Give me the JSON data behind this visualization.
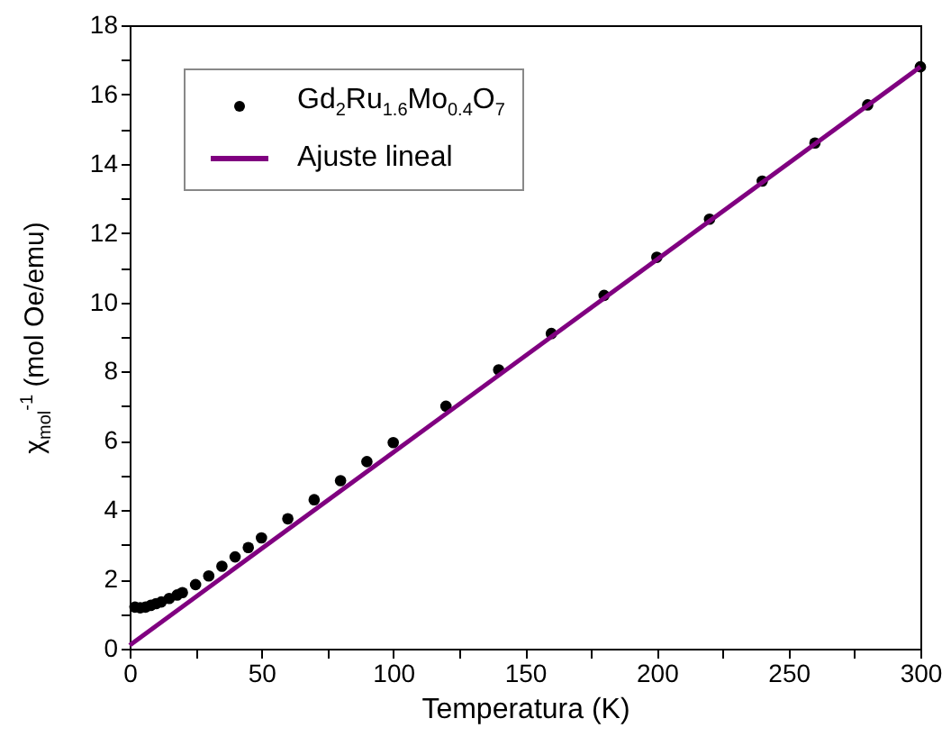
{
  "chart_data": {
    "type": "line",
    "xlabel": "Temperatura (K)",
    "ylabel": "χ$_{mol}$$^{-1}$ (mol Oe/emu)",
    "xlim": [
      0,
      300
    ],
    "ylim": [
      0,
      18
    ],
    "xticks": [
      0,
      {
        "value": 25,
        "label": null
      },
      50,
      {
        "value": 75,
        "label": null
      },
      100,
      {
        "value": 125,
        "label": null
      },
      150,
      {
        "value": 175,
        "label": null
      },
      200,
      {
        "value": 225,
        "label": null
      },
      250,
      {
        "value": 275,
        "label": null
      },
      300
    ],
    "yticks": [
      0,
      {
        "value": 1,
        "label": null
      },
      2,
      {
        "value": 3,
        "label": null
      },
      4,
      {
        "value": 5,
        "label": null
      },
      6,
      {
        "value": 7,
        "label": null
      },
      8,
      {
        "value": 9,
        "label": null
      },
      10,
      {
        "value": 11,
        "label": null
      },
      12,
      {
        "value": 13,
        "label": null
      },
      14,
      {
        "value": 15,
        "label": null
      },
      16,
      {
        "value": 17,
        "label": null
      },
      18
    ],
    "legend": "top left",
    "series": [
      {
        "name": "Gd$_{2}$Ru$_{1.6}$Mo$_{0.4}$O$_{7}$",
        "type": "scatter",
        "marker": "circle",
        "color": "#000000",
        "x": [
          2,
          4,
          6,
          8,
          10,
          12,
          15,
          18,
          20,
          25,
          30,
          35,
          40,
          45,
          50,
          60,
          70,
          80,
          90,
          100,
          120,
          140,
          160,
          180,
          200,
          220,
          240,
          260,
          280,
          300
        ],
        "values": [
          1.2,
          1.18,
          1.2,
          1.25,
          1.3,
          1.35,
          1.45,
          1.55,
          1.62,
          1.85,
          2.1,
          2.38,
          2.65,
          2.92,
          3.2,
          3.75,
          4.3,
          4.85,
          5.4,
          5.95,
          7.0,
          8.05,
          9.1,
          10.2,
          11.3,
          12.4,
          13.5,
          14.6,
          15.7,
          16.8
        ]
      },
      {
        "name": "Ajuste lineal",
        "color": "#800080",
        "x": [
          0,
          300
        ],
        "values": [
          0.1,
          16.8
        ]
      }
    ]
  }
}
